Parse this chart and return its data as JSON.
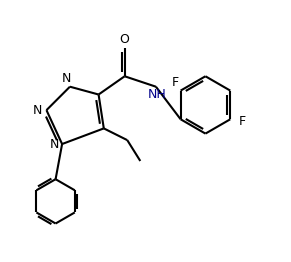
{
  "background_color": "#ffffff",
  "line_color": "#000000",
  "line_width": 1.5,
  "font_size": 8.5,
  "figsize": [
    2.91,
    2.62
  ],
  "dpi": 100,
  "xlim": [
    0,
    10
  ],
  "ylim": [
    0,
    10
  ]
}
